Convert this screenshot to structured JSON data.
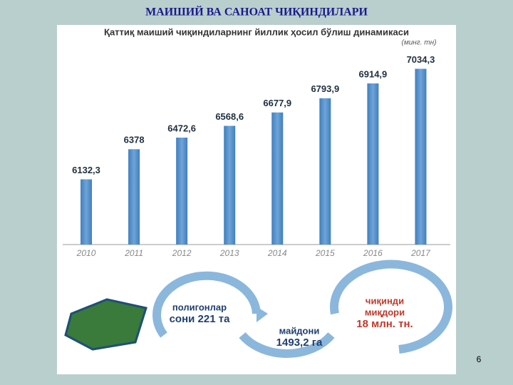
{
  "slide_title": "МАИШИЙ ВА САНОАТ ЧИҚИНДИЛАРИ",
  "chart_data": {
    "type": "bar",
    "title": "Қаттиқ маиший чиқиндиларнинг йиллик ҳосил бўлиш динамикаси",
    "subtitle": "(минг. тн)",
    "categories": [
      "2010",
      "2011",
      "2012",
      "2013",
      "2014",
      "2015",
      "2016",
      "2017"
    ],
    "values": [
      6132.3,
      6378,
      6472.6,
      6568.6,
      6677.9,
      6793.9,
      6914.9,
      7034.3
    ],
    "value_labels": [
      "6132,3",
      "6378",
      "6472,6",
      "6568,6",
      "6677,9",
      "6793,9",
      "6914,9",
      "7034,3"
    ],
    "color": "#4a87c4",
    "ylim": [
      5600,
      7200
    ]
  },
  "infographic": {
    "landfills": [
      "полигонлар",
      "сони 221 та"
    ],
    "area": [
      "майдони",
      "1493,2 га"
    ],
    "waste": [
      "чиқинди",
      "миқдори",
      "18 млн. тн."
    ]
  },
  "page_number": "6"
}
